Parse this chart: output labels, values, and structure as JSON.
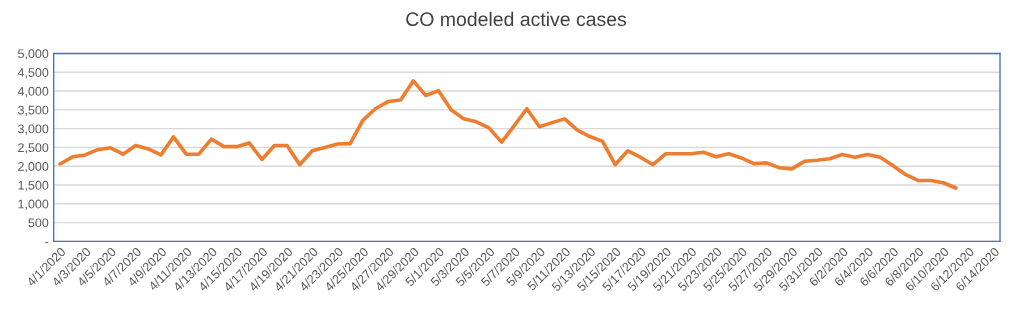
{
  "chart_data": {
    "type": "line",
    "title": "CO modeled active cases",
    "categories": [
      "4/1/2020",
      null,
      "4/3/2020",
      null,
      "4/5/2020",
      null,
      "4/7/2020",
      null,
      "4/9/2020",
      null,
      "4/11/2020",
      null,
      "4/13/2020",
      null,
      "4/15/2020",
      null,
      "4/17/2020",
      null,
      "4/19/2020",
      null,
      "4/21/2020",
      null,
      "4/23/2020",
      null,
      "4/25/2020",
      null,
      "4/27/2020",
      null,
      "4/29/2020",
      null,
      "5/1/2020",
      null,
      "5/3/2020",
      null,
      "5/5/2020",
      null,
      "5/7/2020",
      null,
      "5/9/2020",
      null,
      "5/11/2020",
      null,
      "5/13/2020",
      null,
      "5/15/2020",
      null,
      "5/17/2020",
      null,
      "5/19/2020",
      null,
      "5/21/2020",
      null,
      "5/23/2020",
      null,
      "5/25/2020",
      null,
      "5/27/2020",
      null,
      "5/29/2020",
      null,
      "5/31/2020",
      null,
      "6/2/2020",
      null,
      "6/4/2020",
      null,
      "6/6/2020",
      null,
      "6/8/2020",
      null,
      "6/10/2020",
      null,
      "6/12/2020",
      null,
      "6/14/2020"
    ],
    "series": [
      {
        "color": "#ed7d31",
        "values": [
          2060,
          2250,
          2300,
          2440,
          2490,
          2320,
          2550,
          2460,
          2300,
          2780,
          2320,
          2320,
          2720,
          2520,
          2520,
          2620,
          2180,
          2550,
          2550,
          2040,
          2410,
          2500,
          2590,
          2600,
          3220,
          3530,
          3720,
          3760,
          4270,
          3880,
          4010,
          3500,
          3260,
          3180,
          3020,
          2640,
          3080,
          3530,
          3050,
          3160,
          3260,
          2960,
          2790,
          2660,
          2040,
          2410,
          2240,
          2040,
          2330,
          2330,
          2330,
          2370,
          2250,
          2330,
          2220,
          2070,
          2090,
          1960,
          1930,
          2130,
          2160,
          2200,
          2310,
          2240,
          2310,
          2240,
          2020,
          1780,
          1620,
          1620,
          1560,
          1420,
          null,
          null,
          null
        ]
      }
    ],
    "ylim": [
      0,
      5000
    ],
    "yticks": [
      {
        "value": 0,
        "label": "-"
      },
      {
        "value": 500,
        "label": "500"
      },
      {
        "value": 1000,
        "label": "1,000"
      },
      {
        "value": 1500,
        "label": "1,500"
      },
      {
        "value": 2000,
        "label": "2,000"
      },
      {
        "value": 2500,
        "label": "2,500"
      },
      {
        "value": 3000,
        "label": "3,000"
      },
      {
        "value": 3500,
        "label": "3,500"
      },
      {
        "value": 4000,
        "label": "4,000"
      },
      {
        "value": 4500,
        "label": "4,500"
      },
      {
        "value": 5000,
        "label": "5,000"
      }
    ],
    "grid": "y",
    "marker": "none",
    "line_style": "solid"
  }
}
